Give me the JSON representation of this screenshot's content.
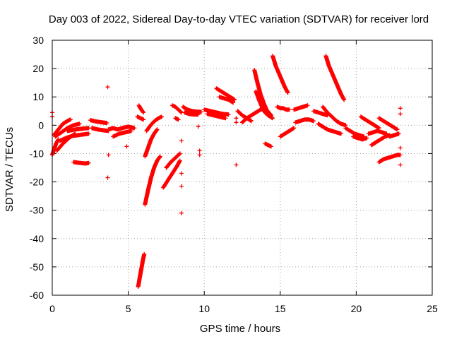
{
  "chart_data": {
    "type": "scatter",
    "title": "Day 003 of 2022, Sidereal Day-to-day VTEC variation (SDTVAR) for receiver lord",
    "xlabel": "GPS time / hours",
    "ylabel": "SDTVAR / TECUs",
    "xlim": [
      0,
      25
    ],
    "ylim": [
      -60,
      30
    ],
    "x_ticks": [
      0,
      5,
      10,
      15,
      20,
      25
    ],
    "y_ticks": [
      -60,
      -50,
      -40,
      -30,
      -20,
      -10,
      0,
      10,
      20,
      30
    ],
    "grid": true,
    "marker": "+",
    "series_color": "#ff0000",
    "segments": [
      {
        "x": [
          0.0,
          0.12,
          0.25,
          0.4
        ],
        "y": [
          -10.5,
          -8.5,
          -6.5,
          -5.0
        ]
      },
      {
        "x": [
          0.1,
          0.4,
          0.7,
          1.0,
          1.2
        ],
        "y": [
          -3.5,
          -1.5,
          0.5,
          1.5,
          2.0
        ]
      },
      {
        "x": [
          0.2,
          0.6,
          1.0,
          1.4,
          1.8
        ],
        "y": [
          -4.0,
          -2.5,
          -1.0,
          0.0,
          0.5
        ]
      },
      {
        "x": [
          0.3,
          0.7,
          1.1,
          1.5
        ],
        "y": [
          -9.0,
          -6.5,
          -4.5,
          -3.0
        ]
      },
      {
        "x": [
          0.5,
          0.9,
          1.3,
          1.7,
          2.1,
          2.4
        ],
        "y": [
          -5.5,
          -4.5,
          -3.8,
          -3.5,
          -3.2,
          -3.0
        ]
      },
      {
        "x": [
          1.0,
          1.5,
          2.0,
          2.4
        ],
        "y": [
          -2.0,
          -1.5,
          -1.2,
          -1.0
        ]
      },
      {
        "x": [
          1.4,
          1.8,
          2.2,
          2.4
        ],
        "y": [
          -13.0,
          -13.3,
          -13.5,
          -13.3
        ]
      },
      {
        "x": [
          2.5,
          2.9,
          3.3,
          3.6
        ],
        "y": [
          1.8,
          1.3,
          1.0,
          0.8
        ]
      },
      {
        "x": [
          2.6,
          3.0,
          3.4,
          3.7
        ],
        "y": [
          -1.0,
          -1.5,
          -1.8,
          -2.0
        ]
      },
      {
        "x": [
          3.7,
          4.0,
          4.3,
          4.6,
          5.0,
          5.4
        ],
        "y": [
          -1.5,
          -1.0,
          -1.5,
          -1.0,
          -0.5,
          -1.0
        ]
      },
      {
        "x": [
          4.0,
          4.4,
          4.8,
          5.2
        ],
        "y": [
          -4.0,
          -3.0,
          -2.5,
          -2.0
        ]
      },
      {
        "x": [
          5.7,
          5.8,
          5.9,
          6.0
        ],
        "y": [
          7.0,
          6.0,
          5.2,
          4.5
        ]
      },
      {
        "x": [
          5.6,
          5.8,
          6.0
        ],
        "y": [
          3.0,
          2.5,
          2.0
        ]
      },
      {
        "x": [
          5.65,
          5.75,
          5.85,
          5.95,
          6.05
        ],
        "y": [
          -57.0,
          -54.0,
          -51.0,
          -48.0,
          -45.5
        ]
      },
      {
        "x": [
          6.1,
          6.3,
          6.5,
          6.7,
          6.9
        ],
        "y": [
          -11.0,
          -8.0,
          -5.0,
          -3.0,
          -1.5
        ]
      },
      {
        "x": [
          6.2,
          6.4,
          6.6,
          6.8,
          7.0,
          7.2
        ],
        "y": [
          -2.0,
          -0.5,
          0.8,
          1.8,
          2.5,
          3.0
        ]
      },
      {
        "x": [
          6.1,
          6.3,
          6.5,
          6.7,
          6.9,
          7.1
        ],
        "y": [
          -28.0,
          -23.0,
          -18.5,
          -15.0,
          -12.5,
          -11.0
        ]
      },
      {
        "x": [
          7.3,
          7.6,
          7.9,
          8.2,
          8.4
        ],
        "y": [
          -22.0,
          -19.5,
          -17.0,
          -14.5,
          -12.5
        ]
      },
      {
        "x": [
          7.5,
          7.8,
          8.1,
          8.4
        ],
        "y": [
          -15.0,
          -13.0,
          -11.5,
          -10.0
        ]
      },
      {
        "x": [
          7.9,
          8.1,
          8.3,
          8.5
        ],
        "y": [
          7.0,
          6.5,
          5.5,
          4.5
        ]
      },
      {
        "x": [
          8.1,
          8.3
        ],
        "y": [
          2.5,
          2.0
        ]
      },
      {
        "x": [
          8.6,
          8.9,
          9.2,
          9.5,
          9.8
        ],
        "y": [
          6.5,
          5.5,
          5.0,
          4.8,
          4.7
        ]
      },
      {
        "x": [
          8.7,
          9.0,
          9.3,
          9.6
        ],
        "y": [
          4.5,
          4.0,
          3.8,
          3.8
        ]
      },
      {
        "x": [
          10.0,
          10.4,
          10.8,
          11.2,
          11.6
        ],
        "y": [
          5.5,
          5.0,
          4.5,
          4.0,
          3.8
        ]
      },
      {
        "x": [
          10.2,
          10.6,
          11.0,
          11.4
        ],
        "y": [
          4.0,
          3.5,
          3.0,
          2.5
        ]
      },
      {
        "x": [
          10.8,
          11.1,
          11.4,
          11.7,
          12.0
        ],
        "y": [
          13.0,
          12.0,
          11.0,
          10.0,
          9.0
        ]
      },
      {
        "x": [
          11.0,
          11.3,
          11.6,
          11.9
        ],
        "y": [
          10.0,
          9.5,
          9.0,
          8.0
        ]
      },
      {
        "x": [
          12.2,
          12.5,
          12.8,
          13.1
        ],
        "y": [
          5.0,
          3.5,
          2.5,
          1.5
        ]
      },
      {
        "x": [
          12.5,
          12.8,
          13.1,
          13.4,
          13.7,
          14.0
        ],
        "y": [
          1.0,
          2.5,
          3.5,
          4.5,
          5.5,
          6.0
        ]
      },
      {
        "x": [
          13.3,
          13.5,
          13.7,
          13.9,
          14.1,
          14.4
        ],
        "y": [
          19.5,
          15.0,
          11.0,
          8.0,
          5.5,
          3.5
        ]
      },
      {
        "x": [
          13.4,
          13.6,
          13.8,
          14.0,
          14.2,
          14.5
        ],
        "y": [
          12.0,
          9.0,
          6.5,
          4.5,
          3.5,
          2.5
        ]
      },
      {
        "x": [
          14.5,
          14.7,
          14.9,
          15.1,
          15.3,
          15.5
        ],
        "y": [
          24.5,
          21.0,
          18.5,
          16.0,
          13.5,
          11.5
        ]
      },
      {
        "x": [
          14.8,
          15.0,
          15.2,
          15.4,
          15.6
        ],
        "y": [
          6.5,
          6.0,
          6.0,
          5.5,
          5.5
        ]
      },
      {
        "x": [
          15.0,
          15.3,
          15.6,
          15.9
        ],
        "y": [
          -4.0,
          -3.0,
          -2.0,
          -1.0
        ]
      },
      {
        "x": [
          14.0,
          14.2,
          14.4
        ],
        "y": [
          -6.5,
          -7.0,
          -7.5
        ]
      },
      {
        "x": [
          15.9,
          16.2,
          16.5,
          16.8
        ],
        "y": [
          5.5,
          6.0,
          6.5,
          7.0
        ]
      },
      {
        "x": [
          16.0,
          16.3,
          16.6,
          16.9,
          17.2
        ],
        "y": [
          1.0,
          1.5,
          2.0,
          2.0,
          1.5
        ]
      },
      {
        "x": [
          17.2,
          17.5,
          17.8,
          18.1
        ],
        "y": [
          5.0,
          4.5,
          4.0,
          3.5
        ]
      },
      {
        "x": [
          18.0,
          18.2,
          18.4,
          18.6,
          18.8,
          19.0,
          19.2
        ],
        "y": [
          24.5,
          21.0,
          18.5,
          16.0,
          13.5,
          11.0,
          9.0
        ]
      },
      {
        "x": [
          17.5,
          17.8,
          18.1,
          18.4,
          18.7,
          19.0
        ],
        "y": [
          0.5,
          -0.5,
          -1.5,
          -2.0,
          -2.5,
          -3.0
        ]
      },
      {
        "x": [
          17.8,
          18.1,
          18.4,
          18.7,
          19.0,
          19.3
        ],
        "y": [
          6.5,
          4.5,
          3.0,
          1.5,
          0.5,
          0.0
        ]
      },
      {
        "x": [
          19.3,
          19.6,
          19.9,
          20.2,
          20.5
        ],
        "y": [
          -1.0,
          -2.0,
          -3.0,
          -3.5,
          -4.0
        ]
      },
      {
        "x": [
          19.8,
          20.1,
          20.4,
          20.7
        ],
        "y": [
          -4.0,
          -4.5,
          -5.0,
          -4.5
        ]
      },
      {
        "x": [
          20.3,
          20.6,
          20.9,
          21.2,
          21.5
        ],
        "y": [
          3.0,
          2.0,
          1.0,
          0.0,
          -1.0
        ]
      },
      {
        "x": [
          20.8,
          21.1,
          21.4,
          21.7,
          22.0
        ],
        "y": [
          -3.0,
          -2.5,
          -2.0,
          -2.5,
          -3.0
        ]
      },
      {
        "x": [
          21.0,
          21.3,
          21.6,
          21.9,
          22.2
        ],
        "y": [
          -7.0,
          -6.0,
          -5.0,
          -4.0,
          -3.5
        ]
      },
      {
        "x": [
          21.5,
          21.8,
          22.1,
          22.4,
          22.7
        ],
        "y": [
          2.5,
          1.5,
          0.5,
          -0.5,
          -1.5
        ]
      },
      {
        "x": [
          21.5,
          21.8,
          22.1,
          22.4,
          22.7,
          22.9
        ],
        "y": [
          -13.0,
          -12.0,
          -11.5,
          -11.0,
          -10.5,
          -10.5
        ]
      },
      {
        "x": [
          22.2,
          22.5,
          22.8
        ],
        "y": [
          -4.0,
          -3.5,
          -3.0
        ]
      }
    ],
    "isolated_points": [
      {
        "x": 0.0,
        "y": 4.5
      },
      {
        "x": 0.0,
        "y": 3.0
      },
      {
        "x": 3.65,
        "y": 13.5
      },
      {
        "x": 3.7,
        "y": -10.5
      },
      {
        "x": 3.65,
        "y": -18.5
      },
      {
        "x": 4.9,
        "y": -7.5
      },
      {
        "x": 8.5,
        "y": -5.5
      },
      {
        "x": 8.5,
        "y": -17.0
      },
      {
        "x": 8.5,
        "y": -21.5
      },
      {
        "x": 8.5,
        "y": -31.0
      },
      {
        "x": 9.6,
        "y": -0.5
      },
      {
        "x": 9.7,
        "y": -9.0
      },
      {
        "x": 9.7,
        "y": -10.5
      },
      {
        "x": 12.1,
        "y": 2.5
      },
      {
        "x": 12.1,
        "y": 1.0
      },
      {
        "x": 12.1,
        "y": -14.0
      },
      {
        "x": 22.9,
        "y": 6.0
      },
      {
        "x": 22.9,
        "y": 4.0
      },
      {
        "x": 22.9,
        "y": -8.0
      },
      {
        "x": 22.9,
        "y": -14.0
      }
    ]
  }
}
